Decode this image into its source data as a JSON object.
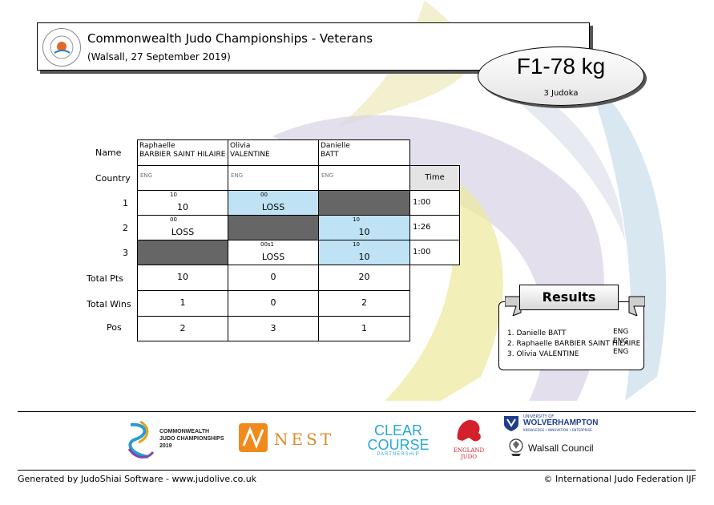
{
  "header": {
    "title": "Commonwealth Judo Championships - Veterans",
    "subtitle": "(Walsall, 27 September 2019)"
  },
  "category": {
    "name": "F1-78 kg",
    "count": "3 Judoka"
  },
  "labels": {
    "name": "Name",
    "country": "Country",
    "time": "Time",
    "rows": [
      "1",
      "2",
      "3"
    ],
    "total_pts": "Total Pts",
    "total_wins": "Total Wins",
    "pos": "Pos"
  },
  "competitors": [
    {
      "first": "Raphaelle",
      "last": "BARBIER SAINT HILAIRE",
      "country": "ENG",
      "total_pts": "10",
      "total_wins": "1",
      "pos": "2"
    },
    {
      "first": "Olivia",
      "last": "VALENTINE",
      "country": "ENG",
      "total_pts": "0",
      "total_wins": "0",
      "pos": "3"
    },
    {
      "first": "Danielle",
      "last": "BATT",
      "country": "ENG",
      "total_pts": "20",
      "total_wins": "2",
      "pos": "1"
    }
  ],
  "matches": {
    "r1c1": {
      "score": "10",
      "result": "10"
    },
    "r1c2": {
      "score": "00",
      "result": "LOSS"
    },
    "r2c1": {
      "score": "00",
      "result": "LOSS"
    },
    "r2c3": {
      "score": "10",
      "result": "10"
    },
    "r3c2": {
      "score": "00s1",
      "result": "LOSS"
    },
    "r3c3": {
      "score": "10",
      "result": "10"
    }
  },
  "times": [
    "1:00",
    "1:26",
    "1:00"
  ],
  "results": {
    "title": "Results",
    "items": [
      {
        "text": "1. Danielle BATT",
        "country": "ENG"
      },
      {
        "text": "2. Raphaelle BARBIER SAINT HILAIRE",
        "country": "ENG"
      },
      {
        "text": "3. Olivia VALENTINE",
        "country": "ENG"
      }
    ]
  },
  "sponsors": {
    "cjc": [
      "COMMONWEALTH",
      "JUDO CHAMPIONSHIPS",
      "2019"
    ],
    "nest": "NEST",
    "clear_course": [
      "CLEAR",
      "COURSE",
      "PARTNERSHIP"
    ],
    "england_judo": [
      "ENGLAND",
      "JUDO"
    ],
    "wolverhampton": [
      "UNIVERSITY OF",
      "WOLVERHAMPTON",
      "KNOWLEDGE • INNOVATION • ENTERPRISE"
    ],
    "walsall": "Walsall Council"
  },
  "footer": {
    "left": "Generated by JudoShiai Software - www.judolive.co.uk",
    "right": "© International Judo Federation IJF"
  },
  "colors": {
    "win_blue": "#bfe3f5",
    "empty_cell": "#666666"
  }
}
